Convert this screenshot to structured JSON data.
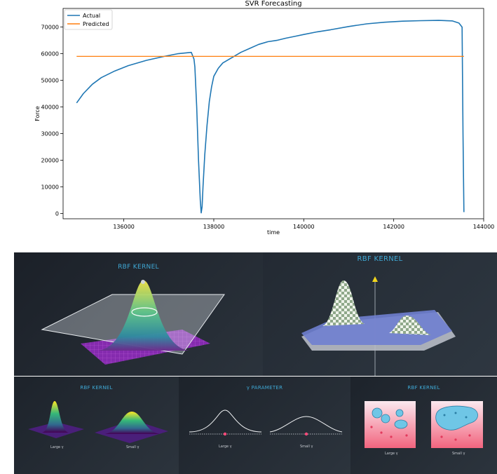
{
  "chart_data": {
    "type": "line",
    "title": "SVR Forecasting",
    "xlabel": "time",
    "ylabel": "Force",
    "xlim": [
      134650,
      144000
    ],
    "ylim": [
      -2000,
      77000
    ],
    "xticks": [
      136000,
      138000,
      140000,
      142000,
      144000
    ],
    "yticks": [
      0,
      10000,
      20000,
      30000,
      40000,
      50000,
      60000,
      70000
    ],
    "legend_position": "top-left",
    "series": [
      {
        "name": "Actual",
        "color": "#1f77b4",
        "x": [
          134950,
          135100,
          135300,
          135500,
          135800,
          136100,
          136500,
          136900,
          137200,
          137500,
          137560,
          137580,
          137620,
          137660,
          137700,
          137720,
          137740,
          137760,
          137800,
          137850,
          137900,
          137950,
          138000,
          138100,
          138200,
          138400,
          138600,
          138800,
          139000,
          139200,
          139400,
          139600,
          139800,
          140000,
          140300,
          140600,
          141000,
          141400,
          141800,
          142200,
          142600,
          143000,
          143300,
          143450,
          143520,
          143540,
          143560
        ],
        "y": [
          41500,
          45000,
          48500,
          51000,
          53500,
          55500,
          57500,
          59000,
          60000,
          60500,
          58000,
          55000,
          40000,
          20000,
          5000,
          200,
          2500,
          10000,
          22000,
          33000,
          42000,
          47500,
          51500,
          54500,
          56500,
          58500,
          60500,
          62000,
          63500,
          64500,
          65000,
          65800,
          66500,
          67200,
          68200,
          69000,
          70200,
          71200,
          71800,
          72200,
          72400,
          72500,
          72300,
          71500,
          70000,
          30000,
          500
        ]
      },
      {
        "name": "Predicted",
        "color": "#ff7f0e",
        "x": [
          134950,
          143560
        ],
        "y": [
          59000,
          59000
        ]
      }
    ]
  },
  "illustrations": {
    "panel_a": {
      "title": "RBF KERNEL"
    },
    "panel_b": {
      "title": "RBF KERNEL"
    },
    "panel_c": {
      "title": "RBF KERNEL",
      "label_left": "Large γ",
      "label_right": "Small γ"
    },
    "panel_d": {
      "title": "γ PARAMETER",
      "label_left": "Large γ",
      "label_right": "Small γ"
    },
    "panel_e": {
      "title": "RBF KERNEL",
      "label_left": "Large γ",
      "label_right": "Small γ"
    }
  }
}
